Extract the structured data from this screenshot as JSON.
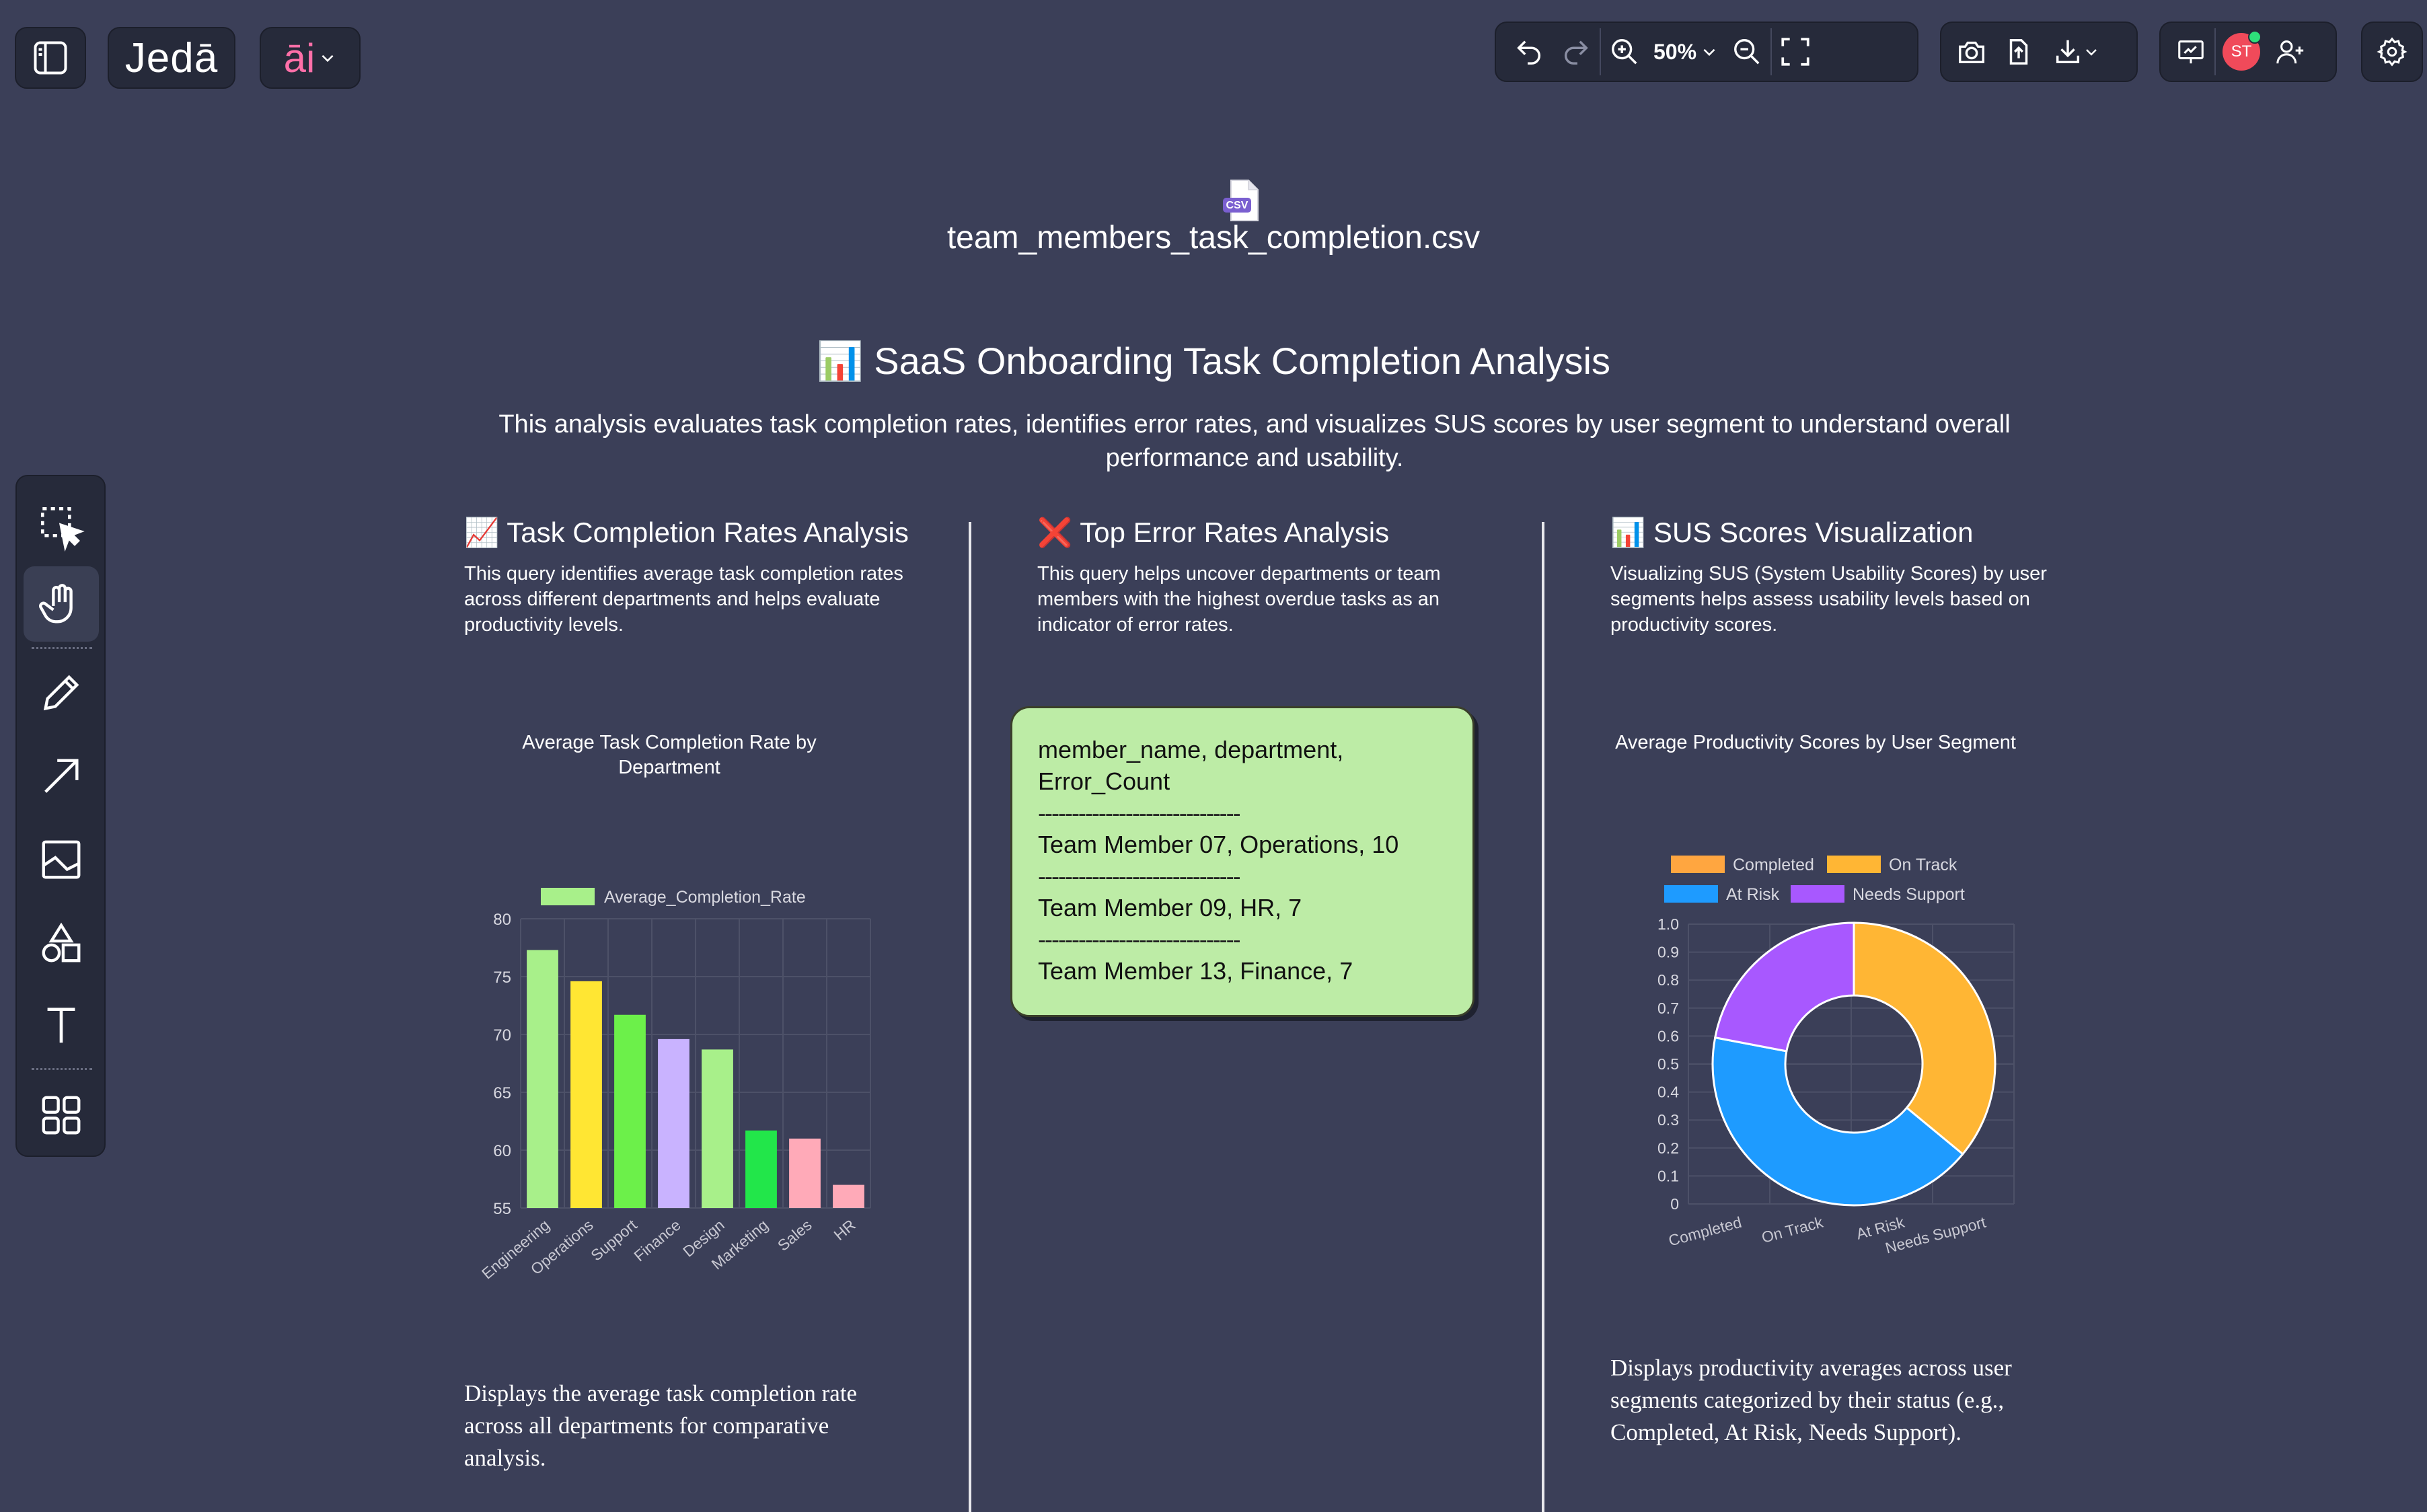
{
  "app": {
    "logo_text": "Jedā",
    "ai_label": "āi",
    "zoom": "50%",
    "avatar_initials": "ST"
  },
  "file": {
    "badge": "CSV",
    "name": "team_members_task_completion.csv"
  },
  "report": {
    "title": "SaaS Onboarding Task Completion Analysis",
    "title_icon": "📊",
    "description": "This analysis evaluates task completion rates, identifies error rates, and visualizes SUS scores by user segment to understand overall performance and usability."
  },
  "sections": {
    "task": {
      "icon": "📈",
      "title": "Task Completion Rates Analysis",
      "description": "This query identifies average task completion rates across different departments and helps evaluate productivity levels.",
      "note": "Displays the average task completion rate across all departments for comparative analysis."
    },
    "errors": {
      "icon": "❌",
      "title": "Top Error Rates Analysis",
      "description": "This query helps uncover departments or team members with the highest overdue tasks as an indicator of error rates.",
      "card": {
        "header1": "member_name, department,",
        "header2": "Error_Count",
        "divider": "------------------------------",
        "row1": "Team Member 07, Operations, 10",
        "row2": "Team Member 09, HR, 7",
        "row3": "Team Member 13, Finance, 7"
      }
    },
    "sus": {
      "icon": "📊",
      "title": "SUS Scores Visualization",
      "description": "Visualizing SUS (System Usability Scores) by user segments helps assess usability levels based on productivity scores.",
      "note": "Displays productivity averages across user segments categorized by their status (e.g., Completed, At Risk, Needs Support)."
    }
  },
  "chart_data": [
    {
      "type": "bar",
      "title": "Average Task Completion Rate by Department",
      "categories": [
        "Engineering",
        "Operations",
        "Support",
        "Finance",
        "Design",
        "Marketing",
        "Sales",
        "HR"
      ],
      "series": [
        {
          "name": "Average_Completion_Rate",
          "values": [
            77.3,
            74.6,
            71.7,
            69.6,
            68.7,
            61.7,
            61.0,
            57.0
          ]
        }
      ],
      "colors": [
        "#a8f08a",
        "#ffe633",
        "#6cf04a",
        "#c9b3ff",
        "#a8f08a",
        "#22e64a",
        "#ffaab8",
        "#ffaab8"
      ],
      "ylim": [
        55,
        80
      ],
      "yticks": [
        80,
        75,
        70,
        65,
        60,
        55
      ],
      "legend": "top"
    },
    {
      "type": "pie",
      "title": "Average Productivity Scores by User Segment",
      "categories": [
        "Completed",
        "On Track",
        "At Risk",
        "Needs Support"
      ],
      "values": [
        0,
        0.36,
        0.42,
        0.22
      ],
      "colors": [
        "#ffa640",
        "#ffb634",
        "#1e9bff",
        "#a858ff"
      ],
      "donut": true,
      "yticks": [
        "1.0",
        "0.9",
        "0.8",
        "0.7",
        "0.6",
        "0.5",
        "0.4",
        "0.3",
        "0.2",
        "0.1",
        "0"
      ],
      "legend": "top"
    }
  ]
}
